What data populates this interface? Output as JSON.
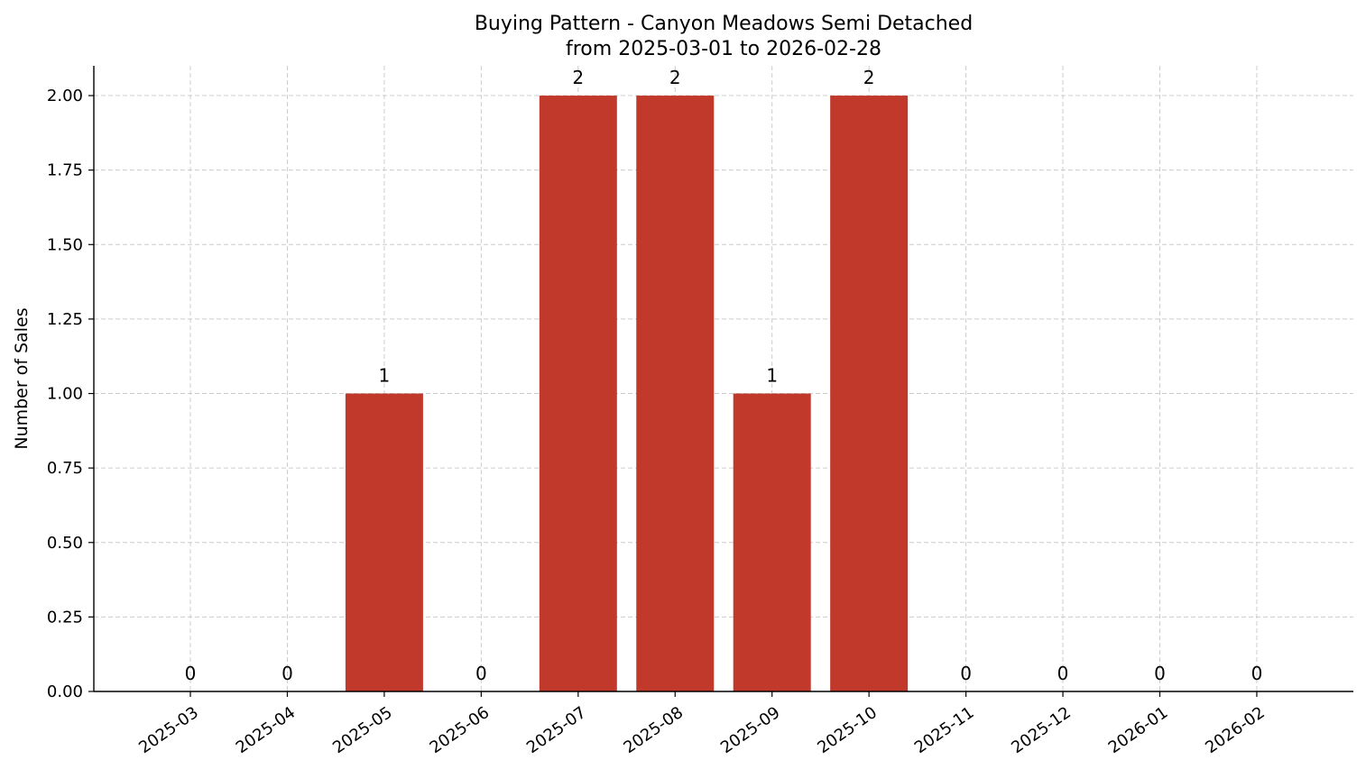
{
  "chart_data": {
    "type": "bar",
    "title": "Buying Pattern - Canyon Meadows Semi Detached",
    "subtitle": "from 2025-03-01 to 2026-02-28",
    "xlabel": "",
    "ylabel": "Number of Sales",
    "categories": [
      "2025-03",
      "2025-04",
      "2025-05",
      "2025-06",
      "2025-07",
      "2025-08",
      "2025-09",
      "2025-10",
      "2025-11",
      "2025-12",
      "2026-01",
      "2026-02"
    ],
    "values": [
      0,
      0,
      1,
      0,
      2,
      2,
      1,
      2,
      0,
      0,
      0,
      0
    ],
    "data_labels": [
      "0",
      "0",
      "1",
      "0",
      "2",
      "2",
      "1",
      "2",
      "0",
      "0",
      "0",
      "0"
    ],
    "ylim": [
      0,
      2.1
    ],
    "yticks": [
      0,
      0.25,
      0.5,
      0.75,
      1.0,
      1.25,
      1.5,
      1.75,
      2.0
    ],
    "ytick_labels": [
      "0.00",
      "0.25",
      "0.50",
      "0.75",
      "1.00",
      "1.25",
      "1.50",
      "1.75",
      "2.00"
    ],
    "grid": true,
    "bar_color": "#c0392b"
  }
}
